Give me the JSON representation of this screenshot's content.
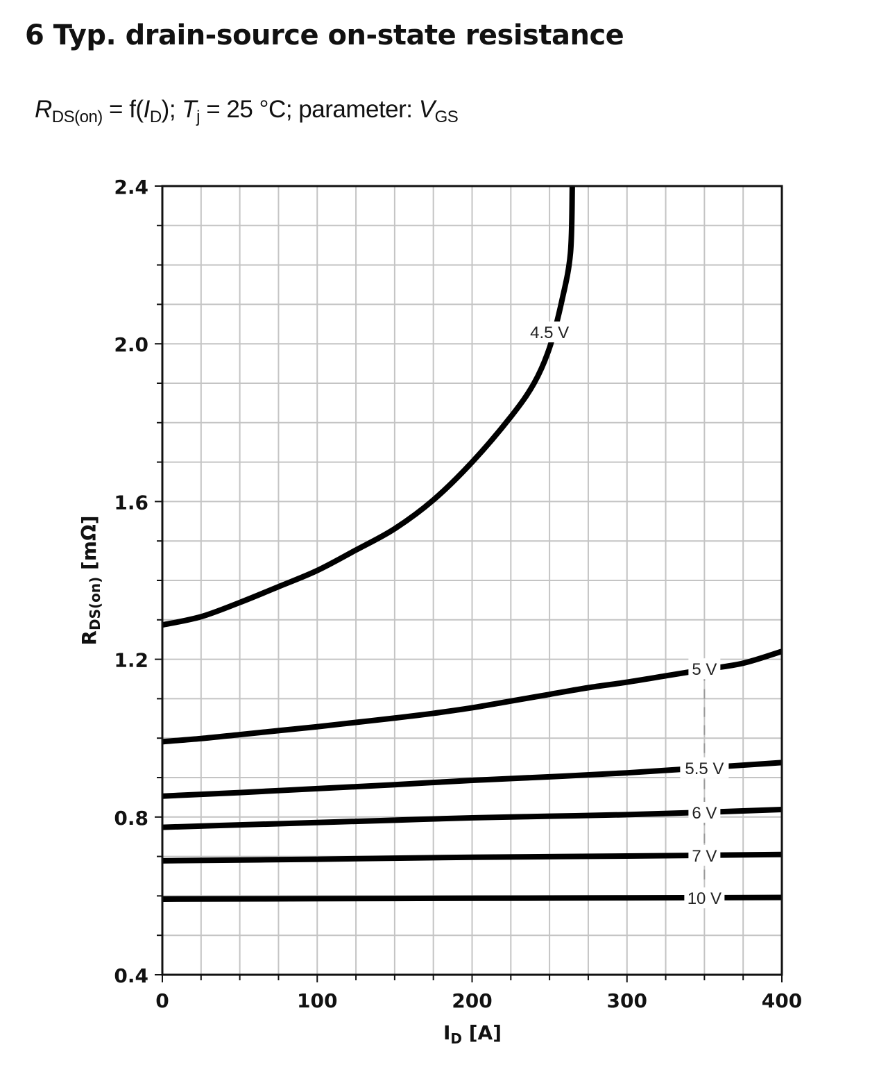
{
  "figure": {
    "title": "6 Typ. drain-source on-state resistance",
    "subtitle": {
      "r_symbol": "R",
      "r_sub": "DS(on)",
      "eq1": " = f(",
      "i_symbol": "I",
      "i_sub": "D",
      "eq2": "); ",
      "t_symbol": "T",
      "t_sub": "j",
      "eq3": " = 25 °C; parameter: ",
      "v_symbol": "V",
      "v_sub": "GS"
    }
  },
  "chart_data": {
    "type": "line",
    "title": "6 Typ. drain-source on-state resistance",
    "subtitle": "RDS(on) = f(ID); Tj = 25 °C; parameter: VGS",
    "xlabel": "ID [A]",
    "xlabel_main": "I",
    "xlabel_sub": "D",
    "xlabel_unit": " [A]",
    "ylabel": "RDS(on) [mΩ]",
    "ylabel_main": "R",
    "ylabel_sub": "DS(on)",
    "ylabel_unit": " [mΩ]",
    "xlim": [
      0,
      400
    ],
    "ylim": [
      0.4,
      2.4
    ],
    "xticks": [
      0,
      100,
      200,
      300,
      400
    ],
    "xtick_labels": [
      "0",
      "100",
      "200",
      "300",
      "400"
    ],
    "yticks": [
      0.4,
      0.8,
      1.2,
      1.6,
      2.0,
      2.4
    ],
    "ytick_labels": [
      "0.4",
      "0.8",
      "1.2",
      "1.6",
      "2.0",
      "2.4"
    ],
    "x_minor_step": 25,
    "y_minor_step": 0.1,
    "grid": true,
    "legend": "inline labels on curves",
    "series": [
      {
        "name": "4.5 V",
        "label_at": [
          250,
          2.03
        ],
        "x": [
          0,
          25,
          50,
          75,
          100,
          125,
          150,
          175,
          200,
          225,
          240,
          250,
          258,
          263.5,
          264.7
        ],
        "y": [
          1.287,
          1.308,
          1.344,
          1.384,
          1.425,
          1.477,
          1.531,
          1.604,
          1.7,
          1.815,
          1.9,
          1.99,
          2.11,
          2.23,
          2.4
        ]
      },
      {
        "name": "5 V",
        "label_at": [
          350,
          1.176
        ],
        "x": [
          0,
          25,
          50,
          75,
          100,
          125,
          150,
          175,
          200,
          225,
          250,
          275,
          300,
          325,
          350,
          375,
          400
        ],
        "y": [
          0.991,
          0.999,
          1.009,
          1.019,
          1.029,
          1.04,
          1.051,
          1.063,
          1.077,
          1.094,
          1.111,
          1.128,
          1.142,
          1.158,
          1.174,
          1.19,
          1.22
        ]
      },
      {
        "name": "5.5 V",
        "label_at": [
          350,
          0.925
        ],
        "x": [
          0,
          50,
          100,
          150,
          200,
          250,
          300,
          350,
          400
        ],
        "y": [
          0.853,
          0.862,
          0.872,
          0.882,
          0.893,
          0.902,
          0.912,
          0.925,
          0.938
        ]
      },
      {
        "name": "6 V",
        "label_at": [
          350,
          0.812
        ],
        "x": [
          0,
          50,
          100,
          150,
          200,
          250,
          300,
          350,
          400
        ],
        "y": [
          0.774,
          0.78,
          0.786,
          0.792,
          0.798,
          0.802,
          0.806,
          0.812,
          0.819
        ]
      },
      {
        "name": "7 V",
        "label_at": [
          350,
          0.703
        ],
        "x": [
          0,
          100,
          200,
          300,
          400
        ],
        "y": [
          0.689,
          0.693,
          0.698,
          0.701,
          0.705
        ]
      },
      {
        "name": "10 V",
        "label_at": [
          350,
          0.595
        ],
        "x": [
          0,
          100,
          200,
          300,
          400
        ],
        "y": [
          0.592,
          0.593,
          0.594,
          0.595,
          0.596
        ]
      }
    ],
    "annotations": [
      {
        "type": "dashed-vline",
        "x": 350,
        "y_from": 0.6,
        "y_to": 1.17,
        "note": "label alignment guide"
      }
    ],
    "colors": {
      "curve": "#000000",
      "grid": "#c4c4c4",
      "axis": "#111111",
      "label_bg": "#ffffff"
    }
  }
}
